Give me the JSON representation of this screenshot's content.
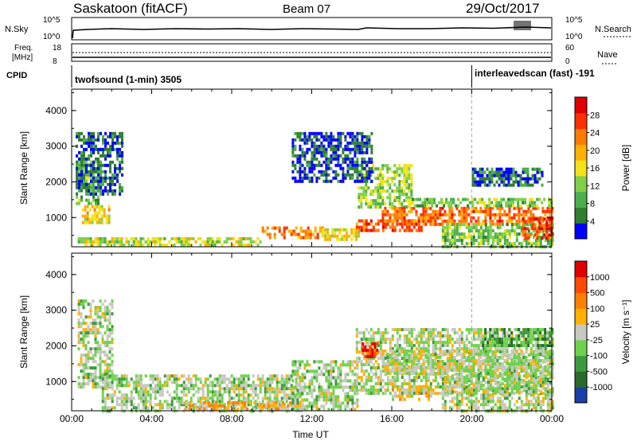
{
  "header": {
    "radar": "Saskatoon (fitACF)",
    "beam": "Beam 07",
    "date": "29/Oct/2017"
  },
  "noise_panel": {
    "left_label": "N.Sky",
    "right_label": "N.Search",
    "left_ticks": [
      "10^5",
      "10^0"
    ],
    "right_ticks": [
      "10^5",
      "10^0"
    ]
  },
  "freq_panel": {
    "left_label_1": "Freq.",
    "left_label_2": "[MHz]",
    "right_label": "Nave",
    "left_ticks": [
      "18",
      "8"
    ],
    "right_ticks": [
      "60",
      "0"
    ]
  },
  "cpid": {
    "label": "CPID",
    "mode1": "twofsound (1-min) 3505",
    "mode2": "interleavedscan (fast) -191",
    "mode2_start_hour": 20
  },
  "colors": {
    "power_scale": [
      "#0000ff",
      "#2f7f2f",
      "#4cae4c",
      "#7fd04a",
      "#f2e21a",
      "#ffb000",
      "#ff7a00",
      "#ff3000",
      "#e00000"
    ],
    "velocity_scale": [
      "#1a3fa8",
      "#2a6a2a",
      "#3d9a3d",
      "#6fd14c",
      "#c8c8c0",
      "#ffb000",
      "#ff8000",
      "#ff4a00",
      "#e00000"
    ]
  },
  "chart_data": [
    {
      "type": "heatmap",
      "panel": "power",
      "ylabel": "Slant Range [km]",
      "xlabel": "",
      "ylim": [
        180,
        4600
      ],
      "xlim": [
        0,
        24
      ],
      "y_ticks": [
        "4000",
        "3000",
        "2000",
        "1000"
      ],
      "colorbar_label": "Power [dB]",
      "colorbar_ticks": [
        "28",
        "24",
        "20",
        "16",
        "12",
        "8",
        "4"
      ],
      "bands": [
        {
          "x0": 0.5,
          "x1": 1.9,
          "y0": 850,
          "y1": 1350,
          "level": 0.55
        },
        {
          "x0": 0.2,
          "x1": 1.5,
          "y0": 1350,
          "y1": 2600,
          "level": 0.3
        },
        {
          "x0": 0.2,
          "x1": 2.5,
          "y0": 1700,
          "y1": 3400,
          "level": 0.12
        },
        {
          "x0": 0.3,
          "x1": 9.5,
          "y0": 200,
          "y1": 450,
          "level": 0.45
        },
        {
          "x0": 9.5,
          "x1": 12.5,
          "y0": 400,
          "y1": 750,
          "level": 0.7
        },
        {
          "x0": 12.5,
          "x1": 14.3,
          "y0": 350,
          "y1": 700,
          "level": 0.5
        },
        {
          "x0": 14.2,
          "x1": 17.5,
          "y0": 600,
          "y1": 950,
          "level": 0.8
        },
        {
          "x0": 14.3,
          "x1": 17.0,
          "y0": 1300,
          "y1": 2500,
          "level": 0.4
        },
        {
          "x0": 15.5,
          "x1": 24.0,
          "y0": 850,
          "y1": 1300,
          "level": 0.75
        },
        {
          "x0": 17.0,
          "x1": 24.0,
          "y0": 1300,
          "y1": 1550,
          "level": 0.35
        },
        {
          "x0": 18.5,
          "x1": 24.0,
          "y0": 200,
          "y1": 850,
          "level": 0.35
        },
        {
          "x0": 22.5,
          "x1": 24.0,
          "y0": 450,
          "y1": 1000,
          "level": 0.85
        },
        {
          "x0": 20.0,
          "x1": 23.5,
          "y0": 1900,
          "y1": 2400,
          "level": 0.15
        },
        {
          "x0": 11.0,
          "x1": 15.0,
          "y0": 2000,
          "y1": 3400,
          "level": 0.1
        }
      ]
    },
    {
      "type": "heatmap",
      "panel": "velocity",
      "ylabel": "Slant Range [km]",
      "xlabel": "Time UT",
      "ylim": [
        180,
        4600
      ],
      "xlim": [
        0,
        24
      ],
      "y_ticks": [
        "4000",
        "3000",
        "2000",
        "1000"
      ],
      "x_ticks": [
        "00:00",
        "04:00",
        "08:00",
        "12:00",
        "16:00",
        "20:00",
        "00:00"
      ],
      "colorbar_label": "Velocity [m s⁻¹]",
      "colorbar_ticks": [
        "1000",
        "500",
        "100",
        "25",
        "-25",
        "-100",
        "-500",
        "-1000"
      ],
      "bands": [
        {
          "x0": 0.3,
          "x1": 2.0,
          "y0": 850,
          "y1": 3300,
          "level": 0.45
        },
        {
          "x0": 1.5,
          "x1": 11.5,
          "y0": 200,
          "y1": 1200,
          "level": 0.44
        },
        {
          "x0": 5.5,
          "x1": 11.5,
          "y0": 200,
          "y1": 450,
          "level": 0.6
        },
        {
          "x0": 11.0,
          "x1": 14.3,
          "y0": 250,
          "y1": 1600,
          "level": 0.44
        },
        {
          "x0": 14.2,
          "x1": 24.0,
          "y0": 700,
          "y1": 2500,
          "level": 0.46
        },
        {
          "x0": 15.5,
          "x1": 24.0,
          "y0": 1200,
          "y1": 1900,
          "level": 0.47
        },
        {
          "x0": 14.5,
          "x1": 15.3,
          "y0": 1700,
          "y1": 2100,
          "level": 0.85
        },
        {
          "x0": 16.0,
          "x1": 18.0,
          "y0": 500,
          "y1": 900,
          "level": 0.55
        },
        {
          "x0": 18.5,
          "x1": 24.0,
          "y0": 200,
          "y1": 1200,
          "level": 0.45
        },
        {
          "x0": 20.5,
          "x1": 24.0,
          "y0": 2000,
          "y1": 2500,
          "level": 0.3
        }
      ]
    }
  ]
}
